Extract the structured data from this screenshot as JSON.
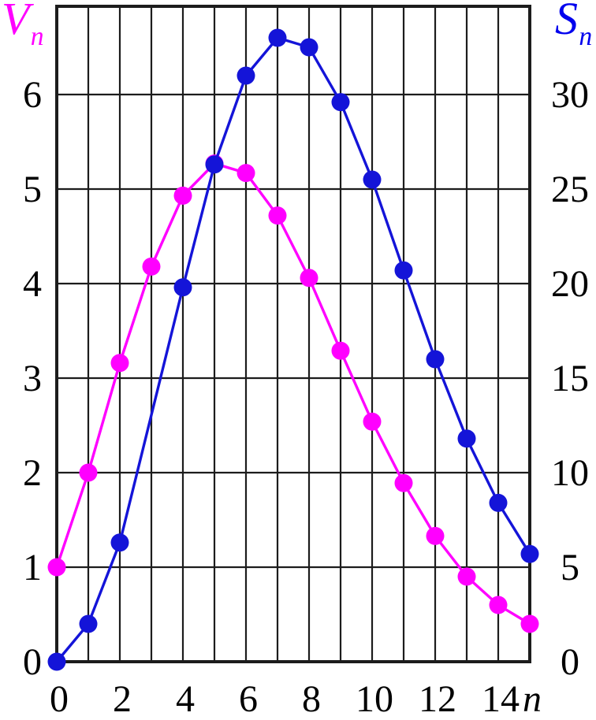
{
  "chart_data": {
    "type": "line",
    "title": "",
    "xlabel": "n",
    "grid": true,
    "grid_color": "#1c1c1c",
    "frame_color": "#1c1c1c",
    "x_axis": {
      "range": [
        0,
        15
      ],
      "gridline_step": 1,
      "tick_labels": [
        "0",
        "2",
        "4",
        "6",
        "8",
        "10",
        "12",
        "14"
      ],
      "tick_positions": [
        0,
        2,
        4,
        6,
        8,
        10,
        12,
        14
      ],
      "label": "n"
    },
    "left_axis": {
      "label_letter": "V",
      "label_sub": "n",
      "color": "#ff00ff",
      "ticks": [
        0,
        1,
        2,
        3,
        4,
        5,
        6
      ],
      "range": [
        0,
        6.93
      ]
    },
    "right_axis": {
      "label_letter": "S",
      "label_sub": "n",
      "color": "#0000ee",
      "ticks": [
        0,
        5,
        10,
        15,
        20,
        25,
        30
      ],
      "range": [
        0,
        34.65
      ]
    },
    "series": [
      {
        "name": "V_n",
        "axis": "left",
        "color": "#ff00ff",
        "marker": "circle",
        "x": [
          0,
          1,
          2,
          3,
          4,
          5,
          6,
          7,
          8,
          9,
          10,
          11,
          12,
          13,
          14,
          15
        ],
        "values": [
          1.0,
          2.0,
          3.16,
          4.18,
          4.93,
          5.27,
          5.17,
          4.72,
          4.06,
          3.29,
          2.54,
          1.89,
          1.33,
          0.9,
          0.6,
          0.4
        ]
      },
      {
        "name": "S_n",
        "axis": "right",
        "color": "#1414d8",
        "marker": "circle",
        "x": [
          0,
          1,
          2,
          4,
          5,
          6,
          7,
          8,
          9,
          10,
          11,
          12,
          13,
          14,
          15
        ],
        "values": [
          0,
          2.0,
          6.3,
          19.8,
          26.3,
          31.0,
          33.0,
          32.5,
          29.6,
          25.5,
          20.7,
          16.0,
          11.8,
          8.4,
          5.7
        ]
      }
    ]
  }
}
